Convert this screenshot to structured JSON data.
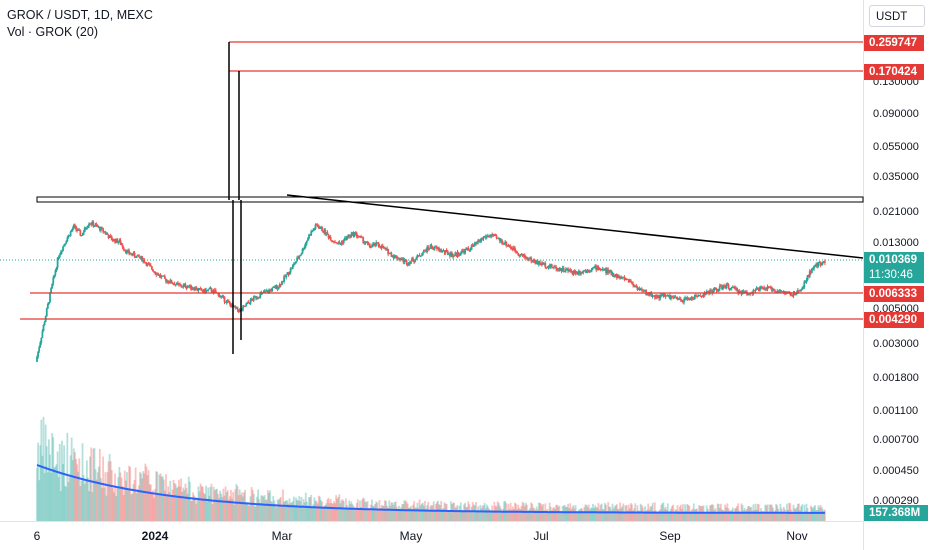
{
  "legend": {
    "title": "GROK / USDT, 1D, MEXC",
    "volume": "Vol · GROK (20)"
  },
  "currency_label": "USDT",
  "axis": {
    "y_ticks": [
      "0.130000",
      "0.090000",
      "0.055000",
      "0.035000",
      "0.021000",
      "0.013000",
      "0.005000",
      "0.003000",
      "0.001800",
      "0.001100",
      "0.000700",
      "0.000450",
      "0.000290"
    ],
    "x_ticks": [
      "6",
      "2024",
      "Mar",
      "May",
      "Jul",
      "Sep",
      "Nov"
    ]
  },
  "price_tags": {
    "level_1": "0.259747",
    "level_2": "0.170424",
    "current_price": "0.010369",
    "countdown": "11:30:46",
    "level_3": "0.006333",
    "level_4": "0.004290",
    "volume_ma": "157.368M"
  },
  "colors": {
    "up": "#26a69a",
    "down": "#ef5350",
    "horizontal_line": "#e53935",
    "trend_line": "#000000",
    "volume_ma": "#2962ff",
    "current_price": "#26a69a"
  },
  "chart_data": {
    "type": "candlestick",
    "title": "GROK / USDT, 1D, MEXC",
    "x_ticks": [
      "6",
      "2024",
      "Mar",
      "May",
      "Jul",
      "Sep",
      "Nov"
    ],
    "y_scale": "log",
    "ylim": [
      0.00025,
      0.32
    ],
    "y_ticks": [
      0.13,
      0.09,
      0.055,
      0.035,
      0.021,
      0.013,
      0.005,
      0.003,
      0.0018,
      0.0011,
      0.0007,
      0.00045,
      0.00029
    ],
    "horizontal_levels": [
      0.259747,
      0.170424,
      0.006333,
      0.00429
    ],
    "resistance_zone": [
      0.0255,
      0.0275
    ],
    "last_price": 0.010369,
    "volume_ma_last": "157.368M",
    "close_series": [
      0.0008,
      0.002,
      0.005,
      0.012,
      0.018,
      0.025,
      0.02,
      0.028,
      0.025,
      0.022,
      0.018,
      0.017,
      0.013,
      0.012,
      0.011,
      0.009,
      0.0075,
      0.0065,
      0.006,
      0.0055,
      0.0055,
      0.0052,
      0.0048,
      0.005,
      0.0045,
      0.0038,
      0.0032,
      0.0029,
      0.0036,
      0.0042,
      0.0046,
      0.005,
      0.0055,
      0.0072,
      0.0095,
      0.013,
      0.02,
      0.026,
      0.022,
      0.018,
      0.016,
      0.019,
      0.021,
      0.018,
      0.015,
      0.016,
      0.014,
      0.012,
      0.011,
      0.01,
      0.011,
      0.013,
      0.015,
      0.014,
      0.013,
      0.012,
      0.013,
      0.014,
      0.016,
      0.019,
      0.02,
      0.018,
      0.016,
      0.014,
      0.012,
      0.011,
      0.01,
      0.0095,
      0.009,
      0.0085,
      0.0082,
      0.0078,
      0.008,
      0.0085,
      0.0088,
      0.0082,
      0.0075,
      0.0068,
      0.0065,
      0.0055,
      0.0048,
      0.0044,
      0.0042,
      0.0043,
      0.0041,
      0.0038,
      0.004,
      0.0042,
      0.0045,
      0.0048,
      0.0052,
      0.0055,
      0.0051,
      0.0047,
      0.0046,
      0.005,
      0.0052,
      0.0051,
      0.0048,
      0.0046,
      0.0044,
      0.0052,
      0.0078,
      0.0095,
      0.0104
    ]
  }
}
